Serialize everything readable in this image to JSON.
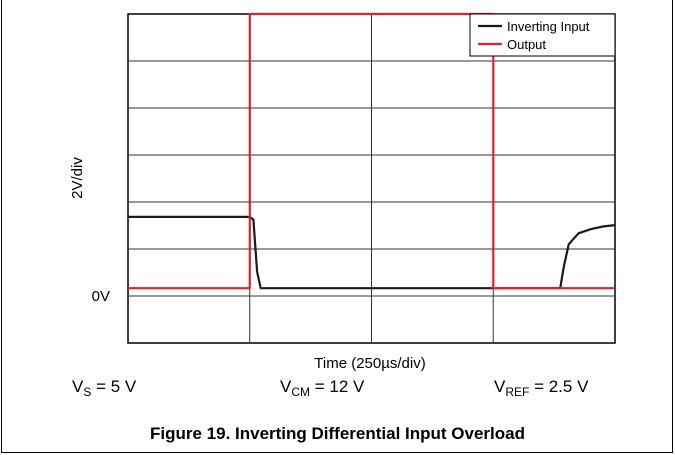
{
  "chart_data": {
    "type": "line",
    "ylabel": "2V/div",
    "xlabel": "Time (250µs/div)",
    "zero_label": "0V",
    "x_divisions": 4,
    "y_divisions": 6,
    "series": [
      {
        "name": "Inverting Input",
        "color": "#1a1a1a",
        "points": [
          [
            0,
            2.6
          ],
          [
            1.0,
            2.6
          ],
          [
            1.03,
            2.5
          ],
          [
            1.06,
            0.6
          ],
          [
            1.09,
            0
          ],
          [
            3.5,
            0
          ],
          [
            3.55,
            0
          ],
          [
            3.58,
            0.8
          ],
          [
            3.62,
            1.6
          ],
          [
            3.7,
            2.0
          ],
          [
            3.8,
            2.15
          ],
          [
            3.9,
            2.25
          ],
          [
            4.0,
            2.3
          ]
        ]
      },
      {
        "name": "Output",
        "color": "#e2202c",
        "points": [
          [
            0,
            0
          ],
          [
            1.0,
            0
          ],
          [
            1.0,
            10
          ],
          [
            3.0,
            10
          ],
          [
            3.0,
            0
          ],
          [
            4.0,
            0
          ]
        ]
      }
    ],
    "ylim": [
      -2,
      10
    ],
    "xlim": [
      0,
      4
    ]
  },
  "conditions": {
    "vs_label": "V",
    "vs_sub": "S",
    "vs_value": " = 5 V",
    "vcm_label": "V",
    "vcm_sub": "CM",
    "vcm_value": " = 12 V",
    "vref_label": "V",
    "vref_sub": "REF",
    "vref_value": " = 2.5 V"
  },
  "caption": "Figure 19. Inverting Differential Input Overload"
}
